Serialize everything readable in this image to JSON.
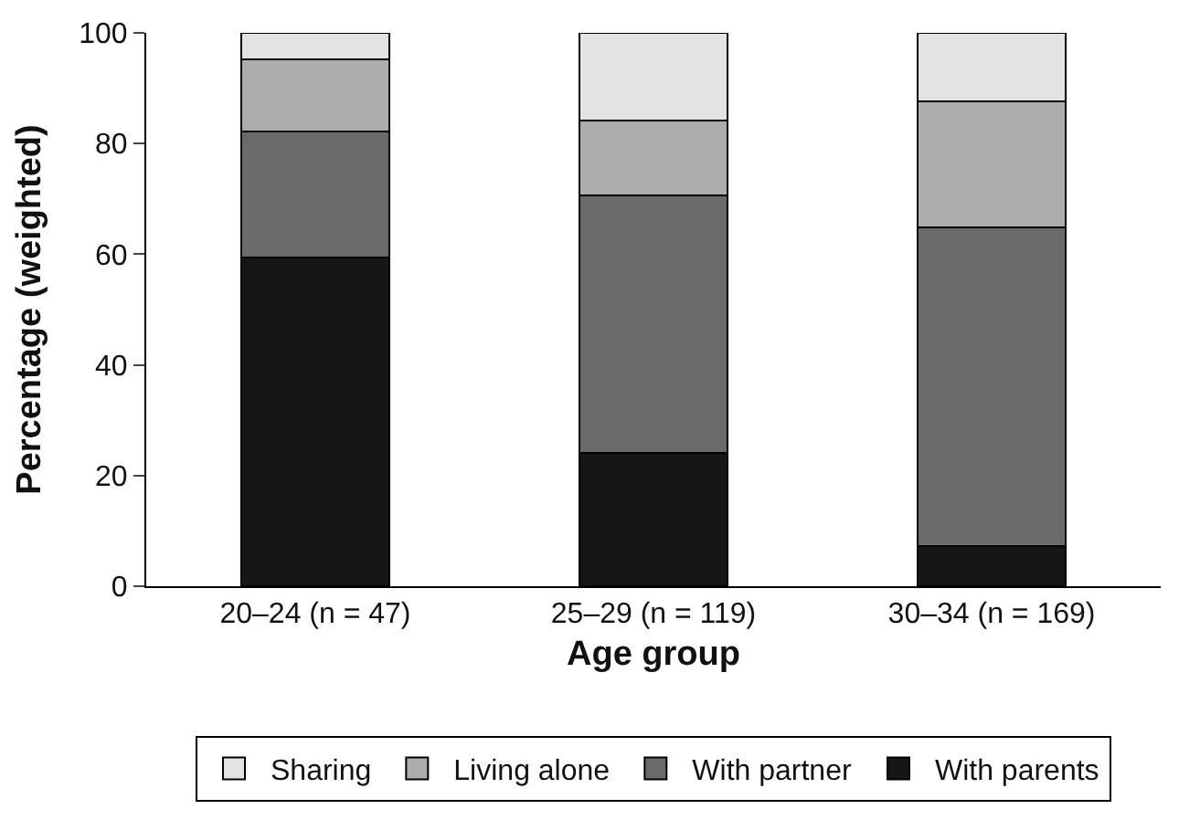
{
  "chart_data": {
    "type": "bar",
    "stacked": true,
    "xlabel": "Age group",
    "ylabel": "Percentage (weighted)",
    "categories": [
      "20–24 (n = 47)",
      "25–29 (n = 119)",
      "30–34 (n = 169)"
    ],
    "series": [
      {
        "name": "With parents",
        "color": "#161616",
        "values": [
          59.4,
          24.1,
          7.2
        ]
      },
      {
        "name": "With partner",
        "color": "#6a6a6a",
        "values": [
          22.8,
          46.6,
          57.6
        ]
      },
      {
        "name": "Living alone",
        "color": "#adadad",
        "values": [
          13.0,
          13.4,
          22.9
        ]
      },
      {
        "name": "Sharing",
        "color": "#e3e3e3",
        "values": [
          4.8,
          15.9,
          12.3
        ]
      }
    ],
    "ylim": [
      0,
      100
    ],
    "yticks": [
      0,
      20,
      40,
      60,
      80,
      100
    ],
    "legend": "bottom"
  }
}
